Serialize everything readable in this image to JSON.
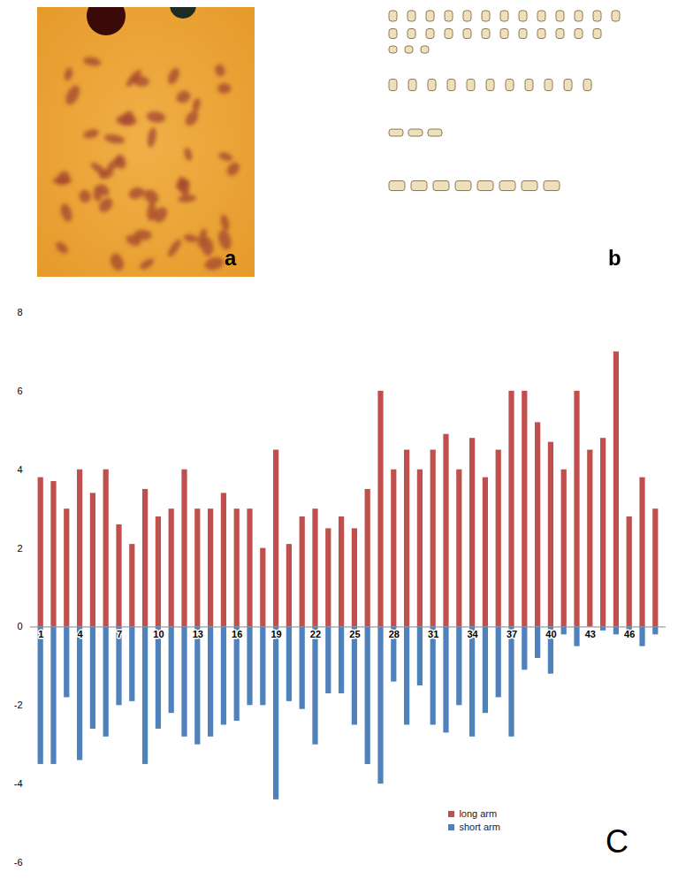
{
  "panels": [
    {
      "label": "a",
      "type": "image"
    },
    {
      "label": "b",
      "type": "image"
    }
  ],
  "chart_data": {
    "type": "bar",
    "panel_label": "C",
    "categories": [
      1,
      2,
      3,
      4,
      5,
      6,
      7,
      8,
      9,
      10,
      11,
      12,
      13,
      14,
      15,
      16,
      17,
      18,
      19,
      20,
      21,
      22,
      23,
      24,
      25,
      26,
      27,
      28,
      29,
      30,
      31,
      32,
      33,
      34,
      35,
      36,
      37,
      38,
      39,
      40,
      41,
      42,
      43,
      44,
      45,
      46,
      47,
      48
    ],
    "series": [
      {
        "name": "long arm",
        "color": "#c0504d",
        "values": [
          3.8,
          3.7,
          3.0,
          4.0,
          3.4,
          4.0,
          2.6,
          2.1,
          3.5,
          2.8,
          3.0,
          4.0,
          3.0,
          3.0,
          3.4,
          3.0,
          3.0,
          2.0,
          4.5,
          2.1,
          2.8,
          3.0,
          2.5,
          2.8,
          2.5,
          3.5,
          6.0,
          4.0,
          4.5,
          4.0,
          4.5,
          4.9,
          4.0,
          4.8,
          3.8,
          4.5,
          6.0,
          6.0,
          5.2,
          4.7,
          4.0,
          6.0,
          4.5,
          4.8,
          7.0,
          2.8,
          3.8,
          3.0
        ]
      },
      {
        "name": "short arm",
        "color": "#4f81bd",
        "values": [
          -3.5,
          -3.5,
          -1.8,
          -3.4,
          -2.6,
          -2.8,
          -2.0,
          -1.9,
          -3.5,
          -2.6,
          -2.2,
          -2.8,
          -3.0,
          -2.8,
          -2.5,
          -2.4,
          -2.0,
          -2.0,
          -4.4,
          -1.9,
          -2.1,
          -3.0,
          -1.7,
          -1.7,
          -2.5,
          -3.5,
          -4.0,
          -1.4,
          -2.5,
          -1.5,
          -2.5,
          -2.7,
          -2.0,
          -2.8,
          -2.2,
          -1.8,
          -2.8,
          -1.1,
          -0.8,
          -1.2,
          -0.2,
          -0.5,
          0,
          -0.1,
          -0.2,
          -0.3,
          -0.5,
          -0.2
        ]
      }
    ],
    "xticks": [
      1,
      4,
      7,
      10,
      13,
      16,
      19,
      22,
      25,
      28,
      31,
      34,
      37,
      40,
      43,
      46
    ],
    "ylim": [
      -6,
      8
    ],
    "yticks": [
      -6,
      -4,
      -2,
      0,
      2,
      4,
      6,
      8
    ],
    "grid": false,
    "legend": "bottom-right"
  }
}
